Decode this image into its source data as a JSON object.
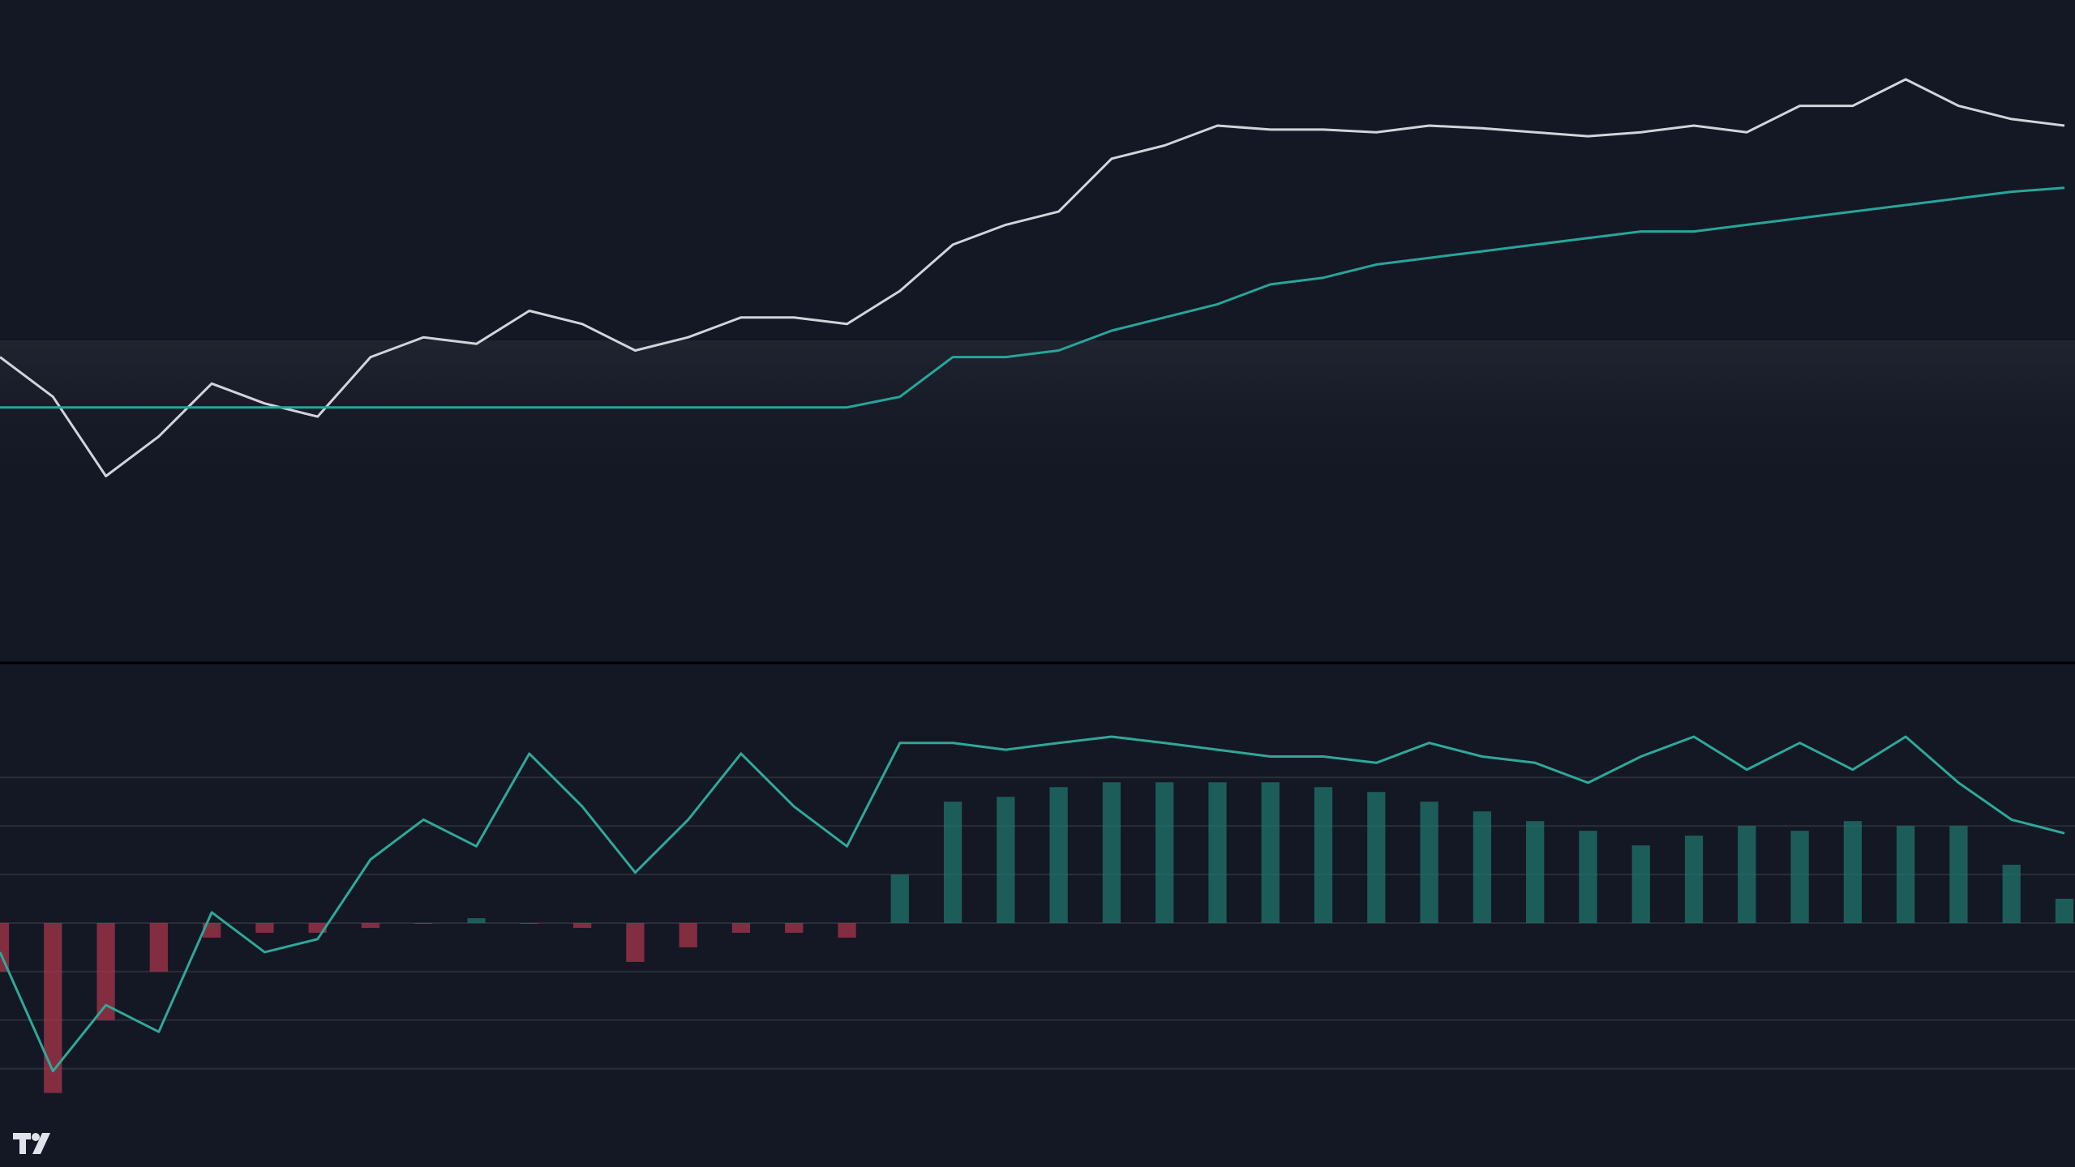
{
  "chart_data": [
    {
      "type": "line",
      "x": [
        0,
        1,
        2,
        3,
        4,
        5,
        6,
        7,
        8,
        9,
        10,
        11,
        12,
        13,
        14,
        15,
        16,
        17,
        18,
        19,
        20,
        21,
        22,
        23,
        24,
        25,
        26,
        27,
        28,
        29,
        30,
        31,
        32,
        33,
        34,
        35,
        36,
        37,
        38,
        39
      ],
      "xlim": [
        0,
        39
      ],
      "ylim": [
        0,
        100
      ],
      "series": [
        {
          "type": "line",
          "color": "#d1d4dc",
          "values": [
            46,
            40,
            28,
            34,
            42,
            39,
            37,
            46,
            49,
            48,
            53,
            51,
            47,
            49,
            52,
            52,
            51,
            56,
            63,
            66,
            68,
            76,
            78,
            81,
            80.4,
            80.4,
            80,
            81,
            80.6,
            80,
            79.4,
            80,
            81,
            80,
            84,
            84,
            88,
            84,
            82,
            81
          ]
        },
        {
          "type": "line",
          "color": "#26a69a",
          "values": [
            38.4,
            38.4,
            38.4,
            38.4,
            38.4,
            38.4,
            38.4,
            38.4,
            38.4,
            38.4,
            38.4,
            38.4,
            38.4,
            38.4,
            38.4,
            38.4,
            38.4,
            40,
            46,
            46,
            47,
            50,
            52,
            54,
            57,
            58,
            60,
            61,
            62,
            63,
            64,
            65,
            65,
            66,
            67,
            68,
            69,
            70,
            71,
            71.6
          ]
        }
      ]
    },
    {
      "type": "line",
      "x": [
        0,
        1,
        2,
        3,
        4,
        5,
        6,
        7,
        8,
        9,
        10,
        11,
        12,
        13,
        14,
        15,
        16,
        17,
        18,
        19,
        20,
        21,
        22,
        23,
        24,
        25,
        26,
        27,
        28,
        29,
        30,
        31,
        32,
        33,
        34,
        35,
        36,
        37,
        38,
        39
      ],
      "xlim": [
        0,
        39
      ],
      "ylim": [
        -5,
        5.3
      ],
      "yticks": [
        -3,
        -2,
        -1,
        0,
        1,
        2,
        3
      ],
      "grid": true,
      "series": [
        {
          "type": "bar",
          "color": "#1f7a72",
          "negative_color": "#b2364f",
          "values": [
            -1.0,
            -3.5,
            -2.0,
            -1.0,
            -0.3,
            -0.2,
            -0.2,
            -0.1,
            0.0,
            0.1,
            0.0,
            -0.1,
            -0.8,
            -0.5,
            -0.2,
            -0.2,
            -0.3,
            1.0,
            2.5,
            2.6,
            2.8,
            2.9,
            2.9,
            2.9,
            2.9,
            2.8,
            2.7,
            2.5,
            2.3,
            2.1,
            1.9,
            1.6,
            1.8,
            2.0,
            1.9,
            2.1,
            2.0,
            2.0,
            1.2,
            0.5
          ]
        },
        {
          "type": "line",
          "color": "#2fa898",
          "values": [
            -0.6,
            -3.05,
            -1.69,
            -2.24,
            0.22,
            -0.6,
            -0.33,
            1.31,
            2.13,
            1.58,
            3.49,
            2.4,
            1.04,
            2.13,
            3.49,
            2.4,
            1.58,
            3.71,
            3.71,
            3.57,
            3.71,
            3.84,
            3.71,
            3.57,
            3.43,
            3.43,
            3.3,
            3.71,
            3.43,
            3.3,
            2.89,
            3.43,
            3.84,
            3.16,
            3.71,
            3.16,
            3.84,
            2.89,
            2.13,
            1.85
          ]
        }
      ]
    }
  ]
}
